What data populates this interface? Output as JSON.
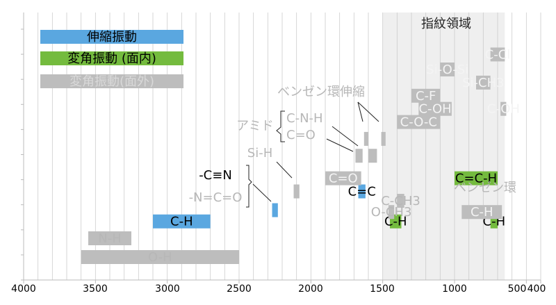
{
  "colors": {
    "stretch": "#5aa7e0",
    "bend_in": "#74bb3e",
    "bend_out": "#bdbdbd",
    "label_gray": "#b7b7b7",
    "fingerprint_bg": "#efefef",
    "grid": "#cccccc"
  },
  "chart_data": {
    "type": "bar",
    "xlim": [
      4000,
      400
    ],
    "xticks": [
      "4000",
      "3500",
      "3000",
      "2500",
      "2000",
      "1500",
      "1000",
      "500",
      "400"
    ],
    "xtick_values": [
      4000,
      3500,
      3000,
      2500,
      2000,
      1500,
      1000,
      500,
      400
    ],
    "minor_grid_step": 100,
    "grid": true,
    "legend": [
      {
        "label": "伸縮振動",
        "color": "#5aa7e0"
      },
      {
        "label": "変角振動 (面内)",
        "color": "#74bb3e"
      },
      {
        "label": "変角振動(面外)",
        "color": "#bdbdbd"
      }
    ],
    "region": {
      "label": "指紋領域",
      "from": 1500,
      "to": 650
    },
    "bands": [
      {
        "label": "O-H",
        "from": 3600,
        "to": 2500,
        "row": 0.0,
        "kind": "bend_out",
        "label_color": "gray"
      },
      {
        "label": "N-H",
        "from": 3550,
        "to": 3250,
        "row": 1.0,
        "kind": "bend_out",
        "label_color": "gray"
      },
      {
        "label": "C-H",
        "from": 3100,
        "to": 2700,
        "row": 1.9,
        "kind": "stretch",
        "label_color": "black"
      },
      {
        "label": "C-H",
        "from": 1450,
        "to": 1370,
        "row": 1.9,
        "kind": "bend_in",
        "label_color": "black"
      },
      {
        "label": "C-H",
        "from": 750,
        "to": 700,
        "row": 1.9,
        "kind": "bend_in",
        "label_color": "black"
      },
      {
        "label": "",
        "from": 2270,
        "to": 2230,
        "row": 2.5,
        "kind": "stretch",
        "label_color": "black"
      },
      {
        "label": "",
        "from": 2120,
        "to": 2080,
        "row": 3.5,
        "kind": "bend_out",
        "label_color": "gray"
      },
      {
        "label": "C=C",
        "from": 1670,
        "to": 1620,
        "row": 3.5,
        "kind": "stretch",
        "label_color": "black"
      },
      {
        "label": "C=O",
        "from": 1900,
        "to": 1650,
        "row": 4.2,
        "kind": "bend_out",
        "label_color": "white"
      },
      {
        "label": "C=C-H",
        "from": 1000,
        "to": 700,
        "row": 4.2,
        "kind": "bend_in",
        "label_color": "black"
      },
      {
        "label": "",
        "from": 1690,
        "to": 1640,
        "row": 5.4,
        "kind": "bend_out",
        "label_color": "gray"
      },
      {
        "label": "",
        "from": 1600,
        "to": 1540,
        "row": 5.4,
        "kind": "bend_out",
        "label_color": "gray"
      },
      {
        "label": "",
        "from": 1630,
        "to": 1600,
        "row": 6.3,
        "kind": "bend_out",
        "label_color": "gray"
      },
      {
        "label": "",
        "from": 1510,
        "to": 1480,
        "row": 6.3,
        "kind": "bend_out",
        "label_color": "gray"
      },
      {
        "label": "C-O-C",
        "from": 1400,
        "to": 1100,
        "row": 7.2,
        "kind": "bend_out",
        "label_color": "white"
      },
      {
        "label": "C-OH",
        "from": 1250,
        "to": 1020,
        "row": 7.9,
        "kind": "bend_out",
        "label_color": "white"
      },
      {
        "label": "C-OH",
        "from": 680,
        "to": 640,
        "row": 7.9,
        "kind": "bend_out",
        "label_color": "white"
      },
      {
        "label": "C-F",
        "from": 1300,
        "to": 1100,
        "row": 8.6,
        "kind": "bend_out",
        "label_color": "white"
      },
      {
        "label": "Si-CH3",
        "from": 850,
        "to": 750,
        "row": 9.3,
        "kind": "bend_out",
        "label_color": "white"
      },
      {
        "label": "Si-O-Si",
        "from": 1100,
        "to": 1000,
        "row": 10.0,
        "kind": "bend_out",
        "label_color": "white"
      },
      {
        "label": "C-Cl",
        "from": 750,
        "to": 650,
        "row": 10.8,
        "kind": "bend_out",
        "label_color": "white"
      },
      {
        "label": "C-CH3",
        "from": 1400,
        "to": 1350,
        "row": 3.0,
        "kind": "bend_out",
        "label_color": "gray"
      },
      {
        "label": "O-CH3",
        "from": 1460,
        "to": 1420,
        "row": 2.4,
        "kind": "bend_out",
        "label_color": "gray"
      },
      {
        "label": "C-H",
        "from": 950,
        "to": 670,
        "row": 2.4,
        "kind": "bend_out",
        "label_color": "white"
      }
    ]
  },
  "annotations": {
    "benzene_stretch": "ベンゼン環伸縮",
    "amide": "アミド",
    "cnh": "C-N-H",
    "co": "C=O",
    "sih": "Si-H",
    "nitrile": "-C≡N",
    "isocyanate": "-N=C=O",
    "benzene_ring": "ベンゼン環"
  }
}
